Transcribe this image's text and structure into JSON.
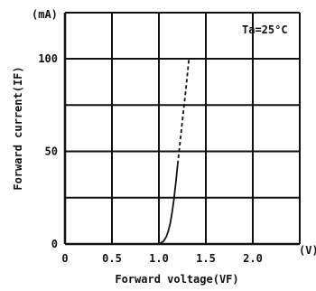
{
  "chart_data": {
    "type": "line",
    "title": "",
    "xlabel": "Forward voltage(VF)",
    "ylabel": "Forward current(IF)",
    "x_unit": "(V)",
    "y_unit": "(mA)",
    "condition": "Ta=25°C",
    "xlim": [
      0,
      2.5
    ],
    "ylim": [
      0,
      100
    ],
    "x_ticks": [
      "0",
      "0.5",
      "1.0",
      "1.5",
      "2.0"
    ],
    "y_ticks": [
      "0",
      "50",
      "100"
    ],
    "grid": true,
    "series": [
      {
        "x": [
          1.0,
          1.05,
          1.08,
          1.1,
          1.12,
          1.14,
          1.16,
          1.18,
          1.2
        ],
        "y": [
          0,
          1.5,
          4,
          7,
          11,
          17,
          24,
          33,
          43
        ],
        "style": "solid"
      },
      {
        "x": [
          1.2,
          1.23,
          1.26,
          1.29,
          1.32
        ],
        "y": [
          43,
          57,
          71,
          85,
          100
        ],
        "style": "dashed"
      }
    ]
  }
}
